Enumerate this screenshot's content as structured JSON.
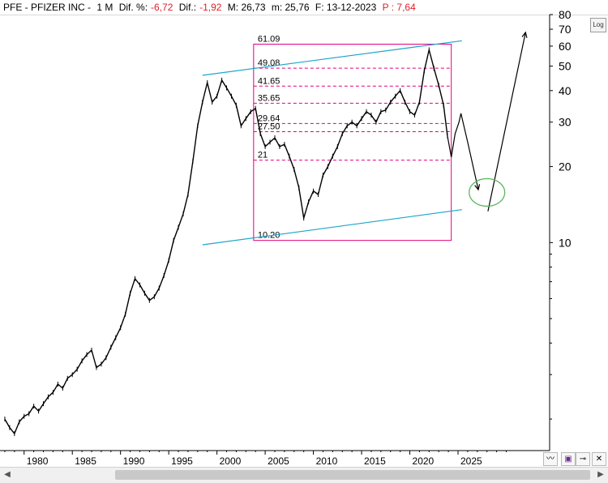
{
  "header": {
    "symbol": "PFE - PFIZER INC -",
    "period": "1 M",
    "dif_pct_label": "Dif. %:",
    "dif_pct_value": "-6,72",
    "dif_label": "Dif.:",
    "dif_value": "-1,92",
    "max_label": "M: 26,73",
    "min_label": "m: 25,76",
    "date_label": "F: 13-12-2023",
    "price_label": "P : 7,64"
  },
  "log_button": "Log",
  "colors": {
    "price": "#000000",
    "fib": "#e0007f",
    "channel": "#1aa6c8",
    "target": "#5cb85c",
    "negative": "#e0202a"
  },
  "chart_data": {
    "type": "line",
    "y_scale": "log",
    "ylim": [
      1.5,
      80
    ],
    "xlim": [
      1977.5,
      2034.5
    ],
    "y_tick_labels": [
      "80",
      "70",
      "60",
      "50",
      "40",
      "30",
      "20",
      "10"
    ],
    "y_ticks": [
      80,
      70,
      60,
      50,
      40,
      30,
      20,
      10
    ],
    "x_tick_labels": [
      "1980",
      "1985",
      "1990",
      "1995",
      "2000",
      "2005",
      "2010",
      "2015",
      "2020",
      "2025"
    ],
    "x_ticks": [
      1980,
      1985,
      1990,
      1995,
      2000,
      2005,
      2010,
      2015,
      2020,
      2025
    ],
    "series": [
      {
        "values": [
          [
            1978.0,
            2.0
          ],
          [
            1978.5,
            1.85
          ],
          [
            1979.0,
            1.75
          ],
          [
            1979.5,
            1.95
          ],
          [
            1980.0,
            2.05
          ],
          [
            1980.5,
            2.1
          ],
          [
            1981.0,
            2.25
          ],
          [
            1981.5,
            2.15
          ],
          [
            1982.0,
            2.3
          ],
          [
            1982.5,
            2.45
          ],
          [
            1983.0,
            2.55
          ],
          [
            1983.5,
            2.75
          ],
          [
            1984.0,
            2.65
          ],
          [
            1984.5,
            2.9
          ],
          [
            1985.0,
            3.0
          ],
          [
            1985.5,
            3.15
          ],
          [
            1986.0,
            3.4
          ],
          [
            1986.5,
            3.6
          ],
          [
            1987.0,
            3.75
          ],
          [
            1987.5,
            3.2
          ],
          [
            1988.0,
            3.3
          ],
          [
            1988.5,
            3.5
          ],
          [
            1989.0,
            3.85
          ],
          [
            1989.5,
            4.2
          ],
          [
            1990.0,
            4.6
          ],
          [
            1990.5,
            5.2
          ],
          [
            1991.0,
            6.3
          ],
          [
            1991.5,
            7.2
          ],
          [
            1992.0,
            6.8
          ],
          [
            1992.5,
            6.3
          ],
          [
            1993.0,
            5.9
          ],
          [
            1993.5,
            6.1
          ],
          [
            1994.0,
            6.6
          ],
          [
            1994.5,
            7.4
          ],
          [
            1995.0,
            8.5
          ],
          [
            1995.5,
            10.2
          ],
          [
            1996.0,
            11.5
          ],
          [
            1996.5,
            13.0
          ],
          [
            1997.0,
            15.5
          ],
          [
            1997.5,
            21.0
          ],
          [
            1998.0,
            29.0
          ],
          [
            1998.5,
            36.0
          ],
          [
            1999.0,
            43.0
          ],
          [
            1999.5,
            36.0
          ],
          [
            2000.0,
            38.0
          ],
          [
            2000.5,
            44.0
          ],
          [
            2001.0,
            41.0
          ],
          [
            2001.5,
            38.0
          ],
          [
            2002.0,
            35.0
          ],
          [
            2002.5,
            29.0
          ],
          [
            2003.0,
            31.0
          ],
          [
            2003.5,
            33.0
          ],
          [
            2004.0,
            34.0
          ],
          [
            2004.5,
            27.0
          ],
          [
            2005.0,
            24.0
          ],
          [
            2005.5,
            25.0
          ],
          [
            2006.0,
            26.0
          ],
          [
            2006.5,
            24.0
          ],
          [
            2007.0,
            24.5
          ],
          [
            2007.5,
            22.0
          ],
          [
            2008.0,
            19.5
          ],
          [
            2008.5,
            16.5
          ],
          [
            2009.0,
            12.5
          ],
          [
            2009.5,
            14.5
          ],
          [
            2010.0,
            16.0
          ],
          [
            2010.5,
            15.5
          ],
          [
            2011.0,
            18.5
          ],
          [
            2011.5,
            20.0
          ],
          [
            2012.0,
            22.0
          ],
          [
            2012.5,
            24.0
          ],
          [
            2013.0,
            27.0
          ],
          [
            2013.5,
            29.0
          ],
          [
            2014.0,
            30.0
          ],
          [
            2014.5,
            29.0
          ],
          [
            2015.0,
            31.0
          ],
          [
            2015.5,
            33.0
          ],
          [
            2016.0,
            32.0
          ],
          [
            2016.5,
            30.0
          ],
          [
            2017.0,
            33.0
          ],
          [
            2017.5,
            33.5
          ],
          [
            2018.0,
            36.0
          ],
          [
            2018.5,
            38.0
          ],
          [
            2019.0,
            40.0
          ],
          [
            2019.5,
            36.0
          ],
          [
            2020.0,
            33.0
          ],
          [
            2020.5,
            32.0
          ],
          [
            2021.0,
            36.0
          ],
          [
            2021.5,
            48.0
          ],
          [
            2022.0,
            58.0
          ],
          [
            2022.5,
            49.0
          ],
          [
            2023.0,
            42.0
          ],
          [
            2023.5,
            35.0
          ],
          [
            2023.9,
            26.5
          ]
        ]
      }
    ],
    "fib_levels": [
      {
        "label": "61.09",
        "value": 61.09
      },
      {
        "label": "49.08",
        "value": 49.08
      },
      {
        "label": "41.65",
        "value": 41.65
      },
      {
        "label": "35.65",
        "value": 35.65
      },
      {
        "label": "29.64",
        "value": 29.64
      },
      {
        "label": "27.50",
        "value": 27.5
      },
      {
        "label": "21",
        "value": 21.2
      },
      {
        "label": "10.20",
        "value": 10.2
      }
    ],
    "fib_box": {
      "x_start": 2003.8,
      "x_end": 2024.3
    },
    "channel_upper": [
      [
        1998.5,
        46.0
      ],
      [
        2025.4,
        63.0
      ]
    ],
    "channel_lower": [
      [
        1998.5,
        9.8
      ],
      [
        2025.4,
        13.5
      ]
    ],
    "projection_down": [
      [
        2023.9,
        26.5
      ],
      [
        2024.3,
        21.8
      ],
      [
        2024.7,
        27.0
      ],
      [
        2025.1,
        30.0
      ],
      [
        2025.3,
        32.5
      ],
      [
        2026.0,
        25.0
      ],
      [
        2027.1,
        16.2
      ]
    ],
    "projection_up": [
      [
        2028.1,
        13.3
      ],
      [
        2032.0,
        68.0
      ]
    ],
    "target_ellipse": {
      "x": 2028.0,
      "y": 15.8
    }
  }
}
